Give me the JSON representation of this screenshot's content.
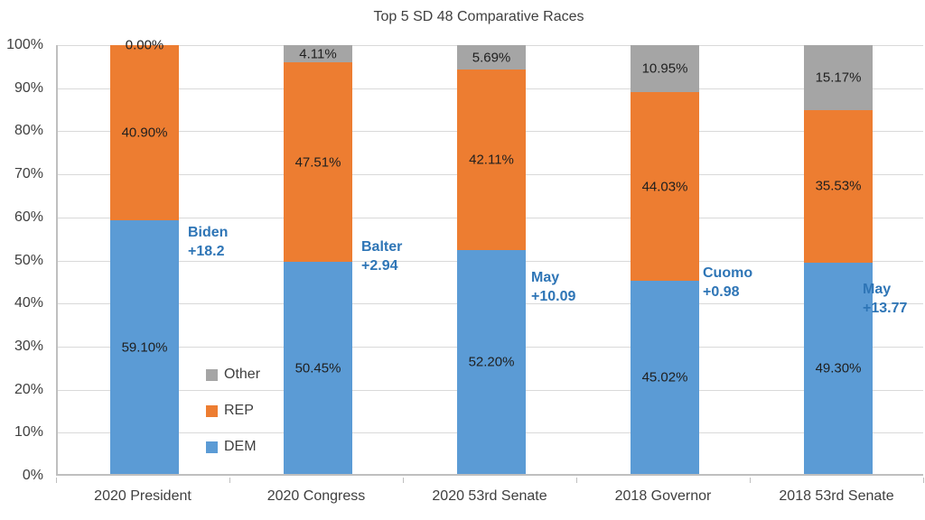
{
  "title": "Top 5 SD 48 Comparative Races",
  "chart_data": {
    "type": "bar",
    "variant": "stacked-column-percent",
    "title": "Top 5 SD 48 Comparative Races",
    "categories": [
      "2020 President",
      "2020 Congress",
      "2020 53rd Senate",
      "2018 Governor",
      "2018 53rd Senate"
    ],
    "series": [
      {
        "name": "DEM",
        "color": "#5B9BD5",
        "values": [
          59.1,
          50.45,
          52.2,
          45.02,
          49.3
        ],
        "labels": [
          "59.10%",
          "50.45%",
          "52.20%",
          "45.02%",
          "49.30%"
        ]
      },
      {
        "name": "REP",
        "color": "#ED7D31",
        "values": [
          40.9,
          47.51,
          42.11,
          44.03,
          35.53
        ],
        "labels": [
          "40.90%",
          "47.51%",
          "42.11%",
          "44.03%",
          "35.53%"
        ]
      },
      {
        "name": "Other",
        "color": "#A5A5A5",
        "values": [
          0.0,
          4.11,
          5.69,
          10.95,
          15.17
        ],
        "labels": [
          "0.00%",
          "4.11%",
          "5.69%",
          "10.95%",
          "15.17%"
        ]
      }
    ],
    "annotations": [
      {
        "winner": "Biden",
        "margin": "+18.2"
      },
      {
        "winner": "Balter",
        "margin": "+2.94"
      },
      {
        "winner": "May",
        "margin": "+10.09"
      },
      {
        "winner": "Cuomo",
        "margin": "+0.98"
      },
      {
        "winner": "May",
        "margin": "+13.77"
      }
    ],
    "annotation_color": "#2E75B6",
    "y_axis": {
      "min": 0,
      "max": 100,
      "tick_labels": [
        "0%",
        "10%",
        "20%",
        "30%",
        "40%",
        "50%",
        "60%",
        "70%",
        "80%",
        "90%",
        "100%"
      ]
    },
    "legend": {
      "position": "inside-plot-left",
      "items": [
        {
          "label": "Other",
          "color": "#A5A5A5"
        },
        {
          "label": "REP",
          "color": "#ED7D31"
        },
        {
          "label": "DEM",
          "color": "#5B9BD5"
        }
      ]
    },
    "grid": true,
    "colors": {
      "gridline": "#D9D9D9",
      "axis": "#BFBFBF",
      "label_text": "#1F1F1F",
      "axis_text": "#404040"
    }
  }
}
